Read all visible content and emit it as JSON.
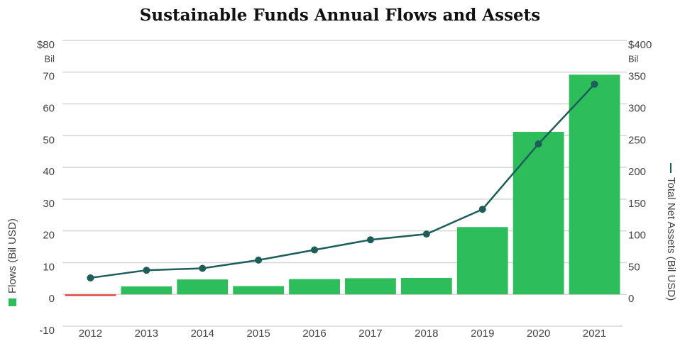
{
  "chart_data": {
    "type": "bar",
    "title": "Sustainable Funds Annual Flows and Assets",
    "categories": [
      "2012",
      "2013",
      "2014",
      "2015",
      "2016",
      "2017",
      "2018",
      "2019",
      "2020",
      "2021"
    ],
    "series": [
      {
        "name": "Flows (Bil USD)",
        "type": "bar",
        "color": "#2dbd5a",
        "negative_color": "#e23b3b",
        "values": [
          -0.5,
          2.5,
          4.7,
          2.6,
          4.8,
          5.1,
          5.2,
          21.2,
          51.2,
          69.2
        ]
      },
      {
        "name": "Total Net Assets (Bil USD)",
        "type": "line",
        "axis": "y2",
        "color": "#1d5e5a",
        "values": [
          26,
          38,
          41,
          54,
          70,
          86,
          95,
          134,
          237,
          331
        ]
      }
    ],
    "ylim": [
      -10,
      80
    ],
    "yticks": [
      -10,
      0,
      10,
      20,
      30,
      40,
      50,
      60,
      70,
      {
        "value": 80,
        "label": "$80"
      }
    ],
    "y_unit": "Bil",
    "y2lim": [
      -50,
      400
    ],
    "y2ticks": [
      0,
      50,
      100,
      150,
      200,
      250,
      300,
      350,
      {
        "value": 400,
        "label": "$400"
      }
    ],
    "y2_unit": "Bil",
    "grid": true
  }
}
